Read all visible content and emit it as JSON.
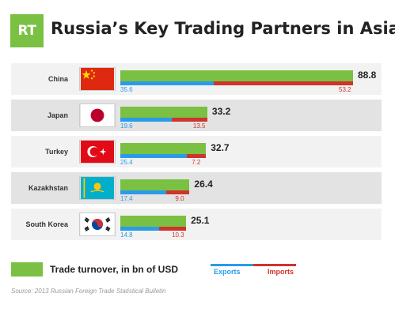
{
  "header": {
    "logo_text": "RT",
    "title": "Russia’s Key Trading Partners in Asia"
  },
  "chart_data": {
    "type": "bar",
    "title": "Russia’s Key Trading Partners in Asia",
    "categories": [
      "China",
      "Japan",
      "Turkey",
      "Kazakhstan",
      "South Korea"
    ],
    "series": [
      {
        "name": "Trade turnover, in bn of USD",
        "values": [
          88.8,
          33.2,
          32.7,
          26.4,
          25.1
        ],
        "color": "#7ac143"
      },
      {
        "name": "Exports",
        "values": [
          35.6,
          19.6,
          25.4,
          17.4,
          14.8
        ],
        "color": "#2a9be8"
      },
      {
        "name": "Imports",
        "values": [
          53.2,
          13.5,
          7.2,
          9.0,
          10.3
        ],
        "color": "#d0332c"
      }
    ],
    "value_labels": {
      "turnover": [
        "88.8",
        "33.2",
        "32.7",
        "26.4",
        "25.1"
      ],
      "exports": [
        "35.6",
        "19.6",
        "25.4",
        "17.4",
        "14.8"
      ],
      "imports": [
        "53.2",
        "13.5",
        "7.2",
        "9.0",
        "10.3"
      ]
    },
    "flags": [
      "china-flag-icon",
      "japan-flag-icon",
      "turkey-flag-icon",
      "kazakhstan-flag-icon",
      "south-korea-flag-icon"
    ],
    "xlim": [
      0,
      88.8
    ]
  },
  "legend": {
    "turnover": "Trade turnover, in bn of USD",
    "exports": "Exports",
    "imports": "Imports"
  },
  "source": "Source: 2013 Russian Foreign Trade Statistical Bulletin"
}
